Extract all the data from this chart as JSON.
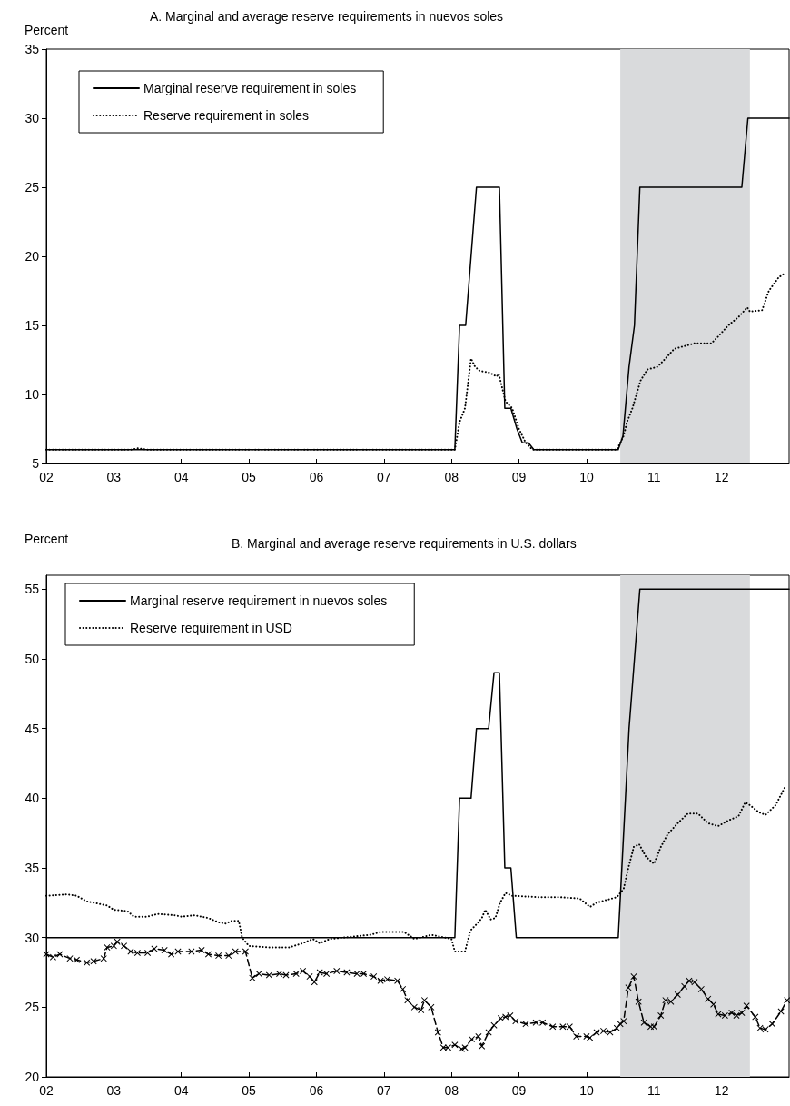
{
  "chart_data": [
    {
      "type": "line",
      "title": "A. Marginal and average reserve requirements in nuevos soles",
      "ylabel": "Percent",
      "xlim": [
        2002,
        2013
      ],
      "xticks": [
        {
          "value": 2002,
          "label": "02"
        },
        {
          "value": 2003,
          "label": "03"
        },
        {
          "value": 2004,
          "label": "04"
        },
        {
          "value": 2005,
          "label": "05"
        },
        {
          "value": 2006,
          "label": "06"
        },
        {
          "value": 2007,
          "label": "07"
        },
        {
          "value": 2008,
          "label": "08"
        },
        {
          "value": 2009,
          "label": "09"
        },
        {
          "value": 2010,
          "label": "10"
        },
        {
          "value": 2011,
          "label": "11"
        },
        {
          "value": 2012,
          "label": "12"
        }
      ],
      "ylim": [
        5,
        35
      ],
      "yticks": [
        5,
        10,
        15,
        20,
        25,
        30,
        35
      ],
      "grid": false,
      "legend": "top left",
      "bands": [
        {
          "axis": "x",
          "from": 2010.5,
          "to": 2012.42,
          "color": "#d9dadc"
        }
      ],
      "series": [
        {
          "name": "Marginal reserve requirement in soles",
          "color": "#000000",
          "line_style": "solid",
          "marker": "none",
          "x": [
            2002,
            2008.05,
            2008.12,
            2008.21,
            2008.37,
            2008.71,
            2008.79,
            2008.88,
            2008.97,
            2009.05,
            2009.14,
            2009.22,
            2010.47,
            2010.54,
            2010.63,
            2010.71,
            2010.79,
            2012.3,
            2012.39,
            2013
          ],
          "values": [
            6,
            6,
            15,
            15,
            25,
            25,
            9,
            9,
            7.5,
            6.5,
            6.5,
            6,
            6,
            7,
            12,
            15,
            25,
            25,
            30,
            30
          ]
        },
        {
          "name": "Reserve requirement in soles",
          "color": "#000000",
          "line_style": "dotted",
          "marker": "none",
          "x": [
            2002,
            2003.25,
            2003.35,
            2003.5,
            2008.05,
            2008.12,
            2008.2,
            2008.29,
            2008.35,
            2008.42,
            2008.55,
            2008.67,
            2008.7,
            2008.8,
            2008.9,
            2009.0,
            2009.1,
            2009.2,
            2010.45,
            2010.55,
            2010.6,
            2010.68,
            2010.8,
            2010.9,
            2011.05,
            2011.15,
            2011.3,
            2011.45,
            2011.6,
            2011.85,
            2011.95,
            2012.1,
            2012.25,
            2012.38,
            2012.42,
            2012.6,
            2012.7,
            2012.85,
            2012.95
          ],
          "values": [
            6,
            6,
            6.1,
            6,
            6,
            8,
            9,
            12.6,
            12,
            11.7,
            11.6,
            11.3,
            11.5,
            9.5,
            9,
            7.5,
            6.5,
            6,
            6,
            7,
            8,
            9,
            11,
            11.8,
            12,
            12.5,
            13.3,
            13.5,
            13.7,
            13.7,
            14.2,
            15,
            15.6,
            16.3,
            16,
            16.1,
            17.5,
            18.5,
            18.8
          ]
        }
      ]
    },
    {
      "type": "line",
      "title": "B. Marginal and average reserve requirements in U.S. dollars",
      "ylabel": "Percent",
      "xlim": [
        2002,
        2013
      ],
      "xticks": [
        {
          "value": 2002,
          "label": "02"
        },
        {
          "value": 2003,
          "label": "03"
        },
        {
          "value": 2004,
          "label": "04"
        },
        {
          "value": 2005,
          "label": "05"
        },
        {
          "value": 2006,
          "label": "06"
        },
        {
          "value": 2007,
          "label": "07"
        },
        {
          "value": 2008,
          "label": "08"
        },
        {
          "value": 2009,
          "label": "09"
        },
        {
          "value": 2010,
          "label": "10"
        },
        {
          "value": 2011,
          "label": "11"
        },
        {
          "value": 2012,
          "label": "12"
        }
      ],
      "ylim": [
        20,
        56
      ],
      "yticks": [
        20,
        25,
        30,
        35,
        40,
        45,
        50,
        55
      ],
      "grid": false,
      "legend": "top left",
      "bands": [
        {
          "axis": "x",
          "from": 2010.5,
          "to": 2012.42,
          "color": "#d9dadc"
        }
      ],
      "series": [
        {
          "name": "Marginal reserve requirement in nuevos soles",
          "color": "#000000",
          "line_style": "solid",
          "marker": "none",
          "x": [
            2002,
            2008.05,
            2008.12,
            2008.29,
            2008.37,
            2008.55,
            2008.63,
            2008.71,
            2008.79,
            2008.88,
            2008.96,
            2010.47,
            2010.63,
            2010.79,
            2013
          ],
          "values": [
            30,
            30,
            40,
            40,
            45,
            45,
            49,
            49,
            35,
            35,
            30,
            30,
            45,
            55,
            55
          ]
        },
        {
          "name": "Reserve requirement in USD",
          "color": "#000000",
          "line_style": "dotted",
          "marker": "none",
          "x": [
            2002,
            2002.3,
            2002.45,
            2002.6,
            2002.9,
            2003.0,
            2003.2,
            2003.3,
            2003.5,
            2003.65,
            2003.9,
            2004.0,
            2004.2,
            2004.4,
            2004.55,
            2004.65,
            2004.75,
            2004.85,
            2004.9,
            2005.0,
            2005.3,
            2005.6,
            2005.8,
            2005.95,
            2006.05,
            2006.2,
            2006.4,
            2006.6,
            2006.8,
            2006.95,
            2007.2,
            2007.3,
            2007.45,
            2007.55,
            2007.7,
            2007.9,
            2008.0,
            2008.05,
            2008.2,
            2008.28,
            2008.38,
            2008.45,
            2008.5,
            2008.58,
            2008.65,
            2008.72,
            2008.8,
            2008.9,
            2009.3,
            2009.6,
            2009.9,
            2010.05,
            2010.15,
            2010.3,
            2010.45,
            2010.55,
            2010.62,
            2010.7,
            2010.78,
            2010.88,
            2011.0,
            2011.1,
            2011.2,
            2011.35,
            2011.5,
            2011.65,
            2011.8,
            2011.95,
            2012.1,
            2012.25,
            2012.35,
            2012.42,
            2012.55,
            2012.65,
            2012.8,
            2012.95
          ],
          "values": [
            33,
            33.1,
            33,
            32.6,
            32.3,
            32,
            31.9,
            31.5,
            31.5,
            31.7,
            31.6,
            31.5,
            31.6,
            31.4,
            31.1,
            31,
            31.2,
            31.2,
            30,
            29.4,
            29.3,
            29.3,
            29.6,
            29.9,
            29.6,
            29.9,
            30,
            30.1,
            30.2,
            30.4,
            30.4,
            30.4,
            29.9,
            30,
            30.2,
            30,
            29.9,
            29,
            29,
            30.5,
            31,
            31.4,
            32,
            31.3,
            31.4,
            32.5,
            33.2,
            33,
            32.9,
            32.9,
            32.8,
            32.2,
            32.5,
            32.7,
            32.9,
            33.5,
            35,
            36.5,
            36.7,
            35.8,
            35.3,
            36.5,
            37.4,
            38.2,
            38.9,
            38.9,
            38.2,
            38,
            38.4,
            38.7,
            39.7,
            39.5,
            39,
            38.8,
            39.5,
            40.9
          ]
        },
        {
          "color": "#000000",
          "line_style": "dashed",
          "marker": "cross",
          "x": [
            2002,
            2002.1,
            2002.2,
            2002.35,
            2002.45,
            2002.6,
            2002.7,
            2002.85,
            2002.9,
            2003.0,
            2003.05,
            2003.15,
            2003.25,
            2003.35,
            2003.5,
            2003.6,
            2003.75,
            2003.85,
            2003.95,
            2004.15,
            2004.3,
            2004.4,
            2004.55,
            2004.7,
            2004.8,
            2004.95,
            2005.05,
            2005.15,
            2005.3,
            2005.45,
            2005.55,
            2005.7,
            2005.8,
            2005.9,
            2005.97,
            2006.05,
            2006.15,
            2006.3,
            2006.45,
            2006.6,
            2006.7,
            2006.85,
            2006.95,
            2007.05,
            2007.2,
            2007.28,
            2007.35,
            2007.45,
            2007.55,
            2007.6,
            2007.7,
            2007.8,
            2007.88,
            2007.95,
            2008.05,
            2008.15,
            2008.2,
            2008.3,
            2008.4,
            2008.45,
            2008.55,
            2008.63,
            2008.73,
            2008.8,
            2008.87,
            2008.95,
            2009.1,
            2009.25,
            2009.35,
            2009.5,
            2009.65,
            2009.75,
            2009.85,
            2010.0,
            2010.05,
            2010.15,
            2010.25,
            2010.35,
            2010.45,
            2010.5,
            2010.55,
            2010.62,
            2010.7,
            2010.77,
            2010.85,
            2010.95,
            2011.0,
            2011.1,
            2011.17,
            2011.25,
            2011.35,
            2011.45,
            2011.52,
            2011.6,
            2011.7,
            2011.8,
            2011.88,
            2011.95,
            2012.05,
            2012.15,
            2012.22,
            2012.3,
            2012.37,
            2012.5,
            2012.57,
            2012.65,
            2012.75,
            2012.88,
            2012.97
          ],
          "values": [
            28.8,
            28.6,
            28.8,
            28.5,
            28.4,
            28.2,
            28.3,
            28.5,
            29.3,
            29.4,
            29.7,
            29.4,
            29,
            28.9,
            28.9,
            29.2,
            29.1,
            28.8,
            29,
            29,
            29.1,
            28.8,
            28.7,
            28.7,
            29,
            29,
            27.1,
            27.4,
            27.3,
            27.4,
            27.3,
            27.4,
            27.6,
            27.2,
            26.8,
            27.5,
            27.4,
            27.6,
            27.5,
            27.4,
            27.4,
            27.2,
            26.9,
            27,
            26.9,
            26.3,
            25.5,
            25,
            24.8,
            25.5,
            25,
            23.2,
            22.1,
            22.1,
            22.3,
            22,
            22.1,
            22.7,
            22.9,
            22.2,
            23.2,
            23.7,
            24.2,
            24.3,
            24.4,
            24,
            23.8,
            23.9,
            23.9,
            23.6,
            23.6,
            23.6,
            22.9,
            22.9,
            22.8,
            23.2,
            23.3,
            23.2,
            23.5,
            23.8,
            24,
            26.4,
            27.2,
            25.4,
            23.9,
            23.6,
            23.6,
            24.4,
            25.5,
            25.4,
            25.9,
            26.5,
            26.9,
            26.8,
            26.3,
            25.6,
            25.2,
            24.5,
            24.4,
            24.6,
            24.4,
            24.6,
            25.1,
            24.3,
            23.5,
            23.4,
            23.8,
            24.7,
            25.5
          ]
        }
      ]
    }
  ]
}
